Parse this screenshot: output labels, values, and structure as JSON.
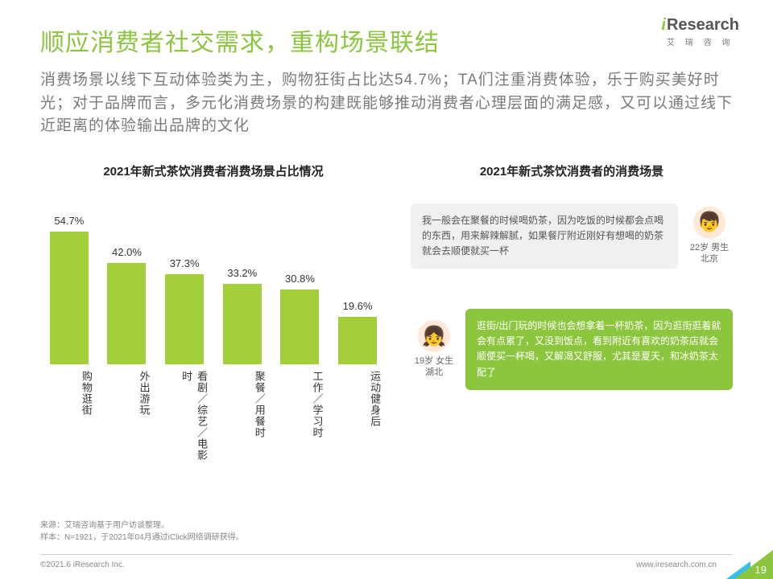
{
  "logo": {
    "i": "i",
    "text": "Research",
    "sub": "艾 瑞 咨 询"
  },
  "title": "顺应消费者社交需求，重构场景联结",
  "subtitle": "消费场景以线下互动体验类为主，购物狂街占比达54.7%；TA们注重消费体验，乐于购买美好时光；对于品牌而言，多元化消费场景的构建既能够推动消费者心理层面的满足感，又可以通过线下近距离的体验输出品牌的文化",
  "chart": {
    "type": "bar",
    "title": "2021年新式茶饮消费者消费场景占比情况",
    "categories": [
      "购物逛街",
      "外出游玩",
      "看剧／综艺／电影时",
      "聚餐／用餐时",
      "工作／学习时",
      "运动健身后"
    ],
    "labels": [
      "54.7%",
      "42.0%",
      "37.3%",
      "33.2%",
      "30.8%",
      "19.6%"
    ],
    "values": [
      54.7,
      42.0,
      37.3,
      33.2,
      30.8,
      19.6
    ],
    "scale_max": 60,
    "bar_color": "#a3cf3a",
    "label_fontsize": 13,
    "title_fontsize": 15
  },
  "right_title": "2021年新式茶饮消费者的消费场景",
  "quote1": {
    "text": "我一般会在聚餐的时候喝奶茶，因为吃饭的时候都会点喝的东西，用来解辣解腻，如果餐厅附近刚好有想喝的奶茶就会去顺便就买一杯",
    "age_label": "22岁 男生",
    "city": "北京",
    "bubble_bg": "#f0f0f0",
    "bubble_color": "#555555"
  },
  "quote2": {
    "text": "逛街/出门玩的时候也会想拿着一杯奶茶，因为逛街逛着就会有点累了，又没到饭点，看到附近有喜欢的奶茶店就会顺便买一杯喝，又解渴又舒服，尤其是夏天，和冰奶茶太配了",
    "age_label": "19岁 女生",
    "city": "湖北",
    "bubble_bg": "#8cc63f",
    "bubble_color": "#ffffff"
  },
  "footnote1": "来源：艾瑞咨询基于用户访谈整理。",
  "footnote2": "样本：N=1921，于2021年04月通过iClick网络调研获得。",
  "copyright": "©2021.6 iResearch Inc.",
  "url": "www.iresearch.com.cn",
  "page": "19",
  "colors": {
    "accent": "#8cc63f",
    "grey_text": "#7a7a7a",
    "corner_blue": "#15b0e8"
  }
}
